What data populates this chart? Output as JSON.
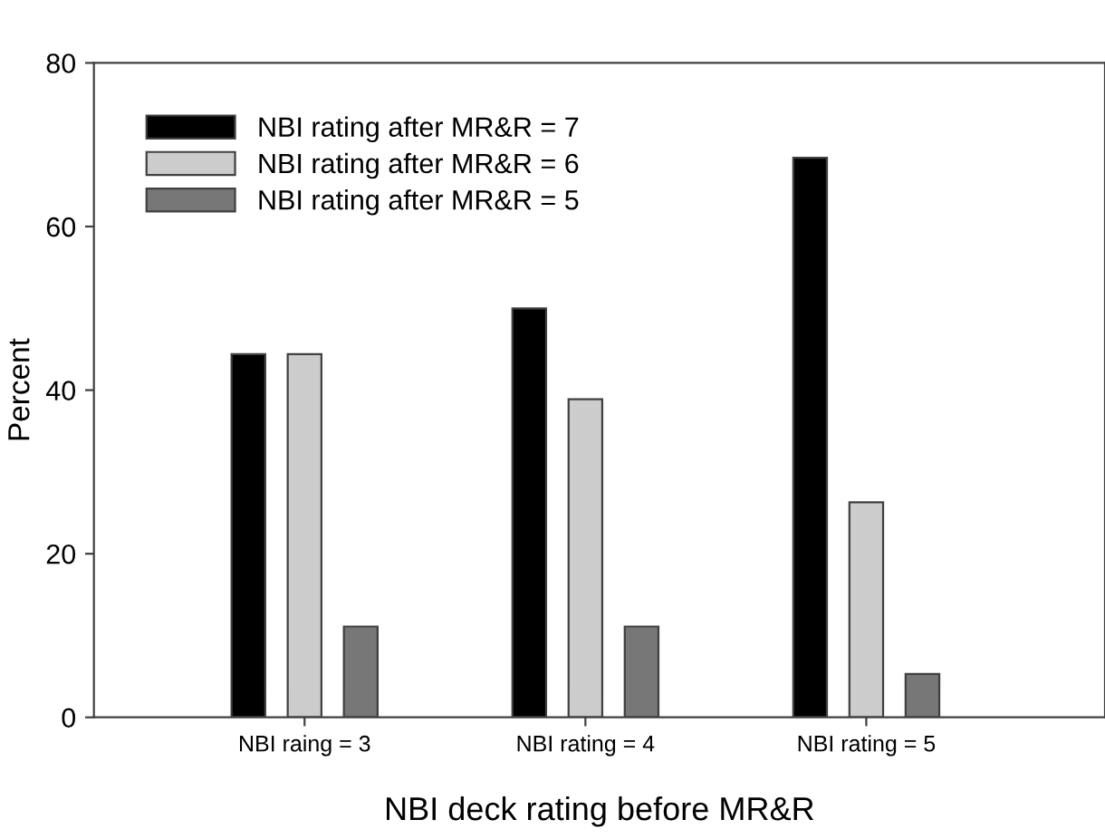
{
  "chart_data": {
    "type": "bar",
    "xlabel": "NBI deck rating before MR&R",
    "ylabel": "Percent",
    "categories": [
      "NBI raing = 3",
      "NBI rating = 4",
      "NBI rating = 5"
    ],
    "series": [
      {
        "name": "NBI rating after MR&R = 7",
        "color": "#000000",
        "values": [
          44.4,
          50.0,
          68.4
        ]
      },
      {
        "name": "NBI rating after MR&R = 6",
        "color": "#cccccc",
        "values": [
          44.4,
          38.9,
          26.3
        ]
      },
      {
        "name": "NBI rating after MR&R = 5",
        "color": "#777777",
        "values": [
          11.1,
          11.1,
          5.3
        ]
      }
    ],
    "ylim": [
      0,
      80
    ],
    "yticks": [
      0,
      20,
      40,
      60,
      80
    ],
    "grid": false,
    "legend": "top left"
  }
}
